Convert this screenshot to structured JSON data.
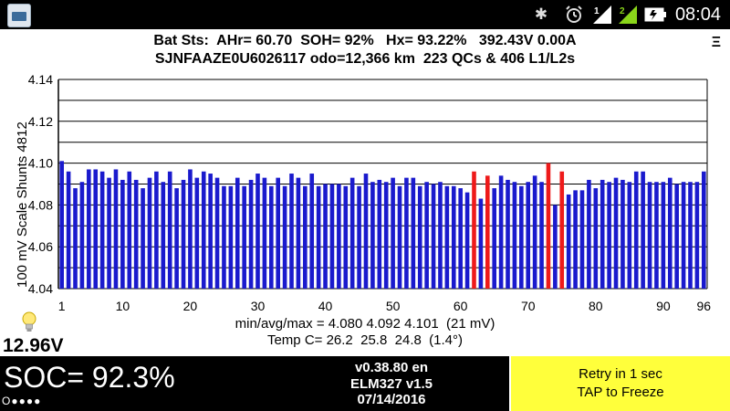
{
  "status_bar": {
    "time": "08:04",
    "signal1_label": "1",
    "signal2_label": "2",
    "icons": [
      "app-icon",
      "bluetooth-icon",
      "alarm-icon",
      "signal-icon",
      "signal-icon",
      "battery-icon"
    ]
  },
  "header": {
    "line1": "Bat Sts:  AHr= 60.70  SOH= 92%   Hx= 93.22%   392.43V 0.00A",
    "line2": "SJNFAAZE0U6026117 odo=12,366 km  223 QCs & 406 L1/L2s",
    "menu_glyph": "Ξ"
  },
  "chart": {
    "ylabel": "100 mV Scale   Shunts 4812",
    "stats": "min/avg/max = 4.080 4.092 4.101  (21 mV)",
    "temp": "Temp C= 26.2  25.8  24.8  (1.4°)"
  },
  "chart_data": {
    "type": "bar",
    "x": [
      1,
      2,
      3,
      4,
      5,
      6,
      7,
      8,
      9,
      10,
      11,
      12,
      13,
      14,
      15,
      16,
      17,
      18,
      19,
      20,
      21,
      22,
      23,
      24,
      25,
      26,
      27,
      28,
      29,
      30,
      31,
      32,
      33,
      34,
      35,
      36,
      37,
      38,
      39,
      40,
      41,
      42,
      43,
      44,
      45,
      46,
      47,
      48,
      49,
      50,
      51,
      52,
      53,
      54,
      55,
      56,
      57,
      58,
      59,
      60,
      61,
      62,
      63,
      64,
      65,
      66,
      67,
      68,
      69,
      70,
      71,
      72,
      73,
      74,
      75,
      76,
      77,
      78,
      79,
      80,
      81,
      82,
      83,
      84,
      85,
      86,
      87,
      88,
      89,
      90,
      91,
      92,
      93,
      94,
      95,
      96
    ],
    "values": [
      4.101,
      4.096,
      4.088,
      4.091,
      4.097,
      4.097,
      4.096,
      4.093,
      4.097,
      4.092,
      4.096,
      4.092,
      4.088,
      4.093,
      4.096,
      4.091,
      4.096,
      4.088,
      4.092,
      4.097,
      4.093,
      4.096,
      4.095,
      4.093,
      4.089,
      4.089,
      4.093,
      4.089,
      4.092,
      4.095,
      4.093,
      4.089,
      4.093,
      4.089,
      4.095,
      4.093,
      4.089,
      4.095,
      4.089,
      4.09,
      4.09,
      4.09,
      4.089,
      4.093,
      4.089,
      4.095,
      4.091,
      4.092,
      4.091,
      4.093,
      4.089,
      4.093,
      4.093,
      4.089,
      4.091,
      4.09,
      4.091,
      4.089,
      4.089,
      4.088,
      4.086,
      4.096,
      4.083,
      4.094,
      4.088,
      4.094,
      4.092,
      4.091,
      4.089,
      4.091,
      4.094,
      4.091,
      4.1,
      4.08,
      4.096,
      4.085,
      4.087,
      4.087,
      4.092,
      4.088,
      4.092,
      4.091,
      4.093,
      4.092,
      4.091,
      4.096,
      4.096,
      4.091,
      4.091,
      4.091,
      4.093,
      4.09,
      4.091,
      4.091,
      4.091,
      4.096
    ],
    "highlighted": [
      62,
      64,
      73,
      75
    ],
    "bar_color": "#1a1acd",
    "highlight_color": "#ee1a1a",
    "ylim": [
      4.04,
      4.14
    ],
    "yticks": [
      "4.04",
      "4.06",
      "4.08",
      "4.10",
      "4.12",
      "4.14"
    ],
    "xticks": [
      1,
      10,
      20,
      30,
      40,
      50,
      60,
      70,
      80,
      90,
      96
    ],
    "grid": true
  },
  "voltage": "12.96V",
  "bottom": {
    "soc": "SOC= 92.3%",
    "dots": "O●●●●",
    "version": "v0.38.80 en",
    "adapter": "ELM327 v1.5",
    "date": "07/14/2016",
    "retry": "Retry in 1 sec",
    "freeze": "TAP to Freeze",
    "colors": {
      "retry_bg": "#ffff3b",
      "panel_bg": "#000000"
    }
  }
}
